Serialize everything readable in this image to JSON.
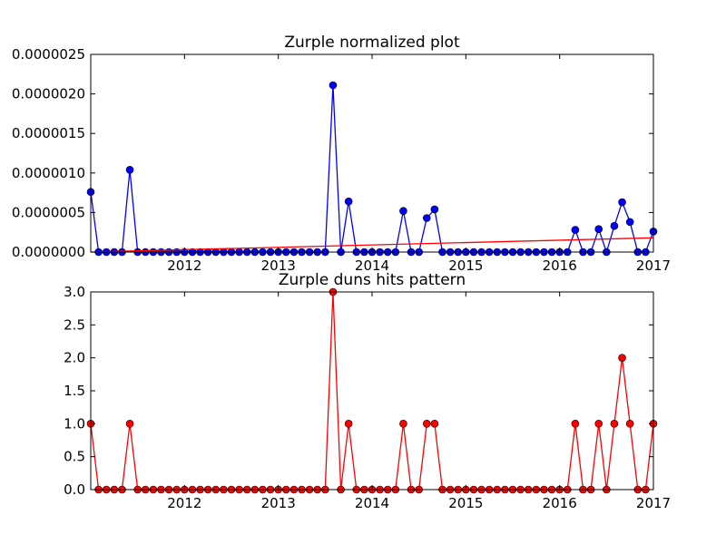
{
  "chart_data": [
    {
      "type": "line",
      "title": "Zurple normalized plot",
      "xlabel": "",
      "ylabel": "",
      "x_tick_labels": [
        "2012",
        "2013",
        "2014",
        "2015",
        "2016",
        "2017"
      ],
      "y_tick_labels": [
        "0.0000000",
        "0.0000005",
        "0.0000010",
        "0.0000015",
        "0.0000020",
        "0.0000025"
      ],
      "xlim": [
        "2011-01",
        "2017-01"
      ],
      "ylim": [
        0,
        2.5e-06
      ],
      "grid": false,
      "series": [
        {
          "color": "#0000ff",
          "marker": "circle",
          "x": [
            "2011-01",
            "2011-02",
            "2011-03",
            "2011-04",
            "2011-05",
            "2011-06",
            "2011-07",
            "2011-08",
            "2011-09",
            "2011-10",
            "2011-11",
            "2011-12",
            "2012-01",
            "2012-02",
            "2012-03",
            "2012-04",
            "2012-05",
            "2012-06",
            "2012-07",
            "2012-08",
            "2012-09",
            "2012-10",
            "2012-11",
            "2012-12",
            "2013-01",
            "2013-02",
            "2013-03",
            "2013-04",
            "2013-05",
            "2013-06",
            "2013-07",
            "2013-08",
            "2013-09",
            "2013-10",
            "2013-11",
            "2013-12",
            "2014-01",
            "2014-02",
            "2014-03",
            "2014-04",
            "2014-05",
            "2014-06",
            "2014-07",
            "2014-08",
            "2014-09",
            "2014-10",
            "2014-11",
            "2014-12",
            "2015-01",
            "2015-02",
            "2015-03",
            "2015-04",
            "2015-05",
            "2015-06",
            "2015-07",
            "2015-08",
            "2015-09",
            "2015-10",
            "2015-11",
            "2015-12",
            "2016-01",
            "2016-02",
            "2016-03",
            "2016-04",
            "2016-05",
            "2016-06",
            "2016-07",
            "2016-08",
            "2016-09",
            "2016-10",
            "2016-11",
            "2016-12",
            "2017-01"
          ],
          "values": [
            7.6e-07,
            0,
            0,
            0,
            0,
            1.04e-06,
            0,
            0,
            0,
            0,
            0,
            0,
            0,
            0,
            0,
            0,
            0,
            0,
            0,
            0,
            0,
            0,
            0,
            0,
            0,
            0,
            0,
            0,
            0,
            0,
            0,
            2.11e-06,
            0,
            6.4e-07,
            0,
            0,
            0,
            0,
            0,
            0,
            5.2e-07,
            0,
            0,
            4.3e-07,
            5.4e-07,
            0,
            0,
            0,
            0,
            0,
            0,
            0,
            0,
            0,
            0,
            0,
            0,
            0,
            0,
            0,
            0,
            0,
            2.8e-07,
            0,
            0,
            2.9e-07,
            0,
            3.3e-07,
            6.3e-07,
            3.8e-07,
            0,
            0,
            2.6e-07
          ]
        },
        {
          "color": "#ff0000",
          "marker": "none",
          "x": [
            "2011-01",
            "2017-01"
          ],
          "values": [
            0,
            1.8e-07
          ]
        }
      ]
    },
    {
      "type": "line",
      "title": "Zurple duns hits pattern",
      "xlabel": "",
      "ylabel": "",
      "x_tick_labels": [
        "2012",
        "2013",
        "2014",
        "2015",
        "2016",
        "2017"
      ],
      "y_tick_labels": [
        "0.0",
        "0.5",
        "1.0",
        "1.5",
        "2.0",
        "2.5",
        "3.0"
      ],
      "xlim": [
        "2011-01",
        "2017-01"
      ],
      "ylim": [
        0,
        3
      ],
      "grid": false,
      "series": [
        {
          "color": "#ff0000",
          "marker": "circle",
          "x": [
            "2011-01",
            "2011-02",
            "2011-03",
            "2011-04",
            "2011-05",
            "2011-06",
            "2011-07",
            "2011-08",
            "2011-09",
            "2011-10",
            "2011-11",
            "2011-12",
            "2012-01",
            "2012-02",
            "2012-03",
            "2012-04",
            "2012-05",
            "2012-06",
            "2012-07",
            "2012-08",
            "2012-09",
            "2012-10",
            "2012-11",
            "2012-12",
            "2013-01",
            "2013-02",
            "2013-03",
            "2013-04",
            "2013-05",
            "2013-06",
            "2013-07",
            "2013-08",
            "2013-09",
            "2013-10",
            "2013-11",
            "2013-12",
            "2014-01",
            "2014-02",
            "2014-03",
            "2014-04",
            "2014-05",
            "2014-06",
            "2014-07",
            "2014-08",
            "2014-09",
            "2014-10",
            "2014-11",
            "2014-12",
            "2015-01",
            "2015-02",
            "2015-03",
            "2015-04",
            "2015-05",
            "2015-06",
            "2015-07",
            "2015-08",
            "2015-09",
            "2015-10",
            "2015-11",
            "2015-12",
            "2016-01",
            "2016-02",
            "2016-03",
            "2016-04",
            "2016-05",
            "2016-06",
            "2016-07",
            "2016-08",
            "2016-09",
            "2016-10",
            "2016-11",
            "2016-12",
            "2017-01"
          ],
          "values": [
            1,
            0,
            0,
            0,
            0,
            1,
            0,
            0,
            0,
            0,
            0,
            0,
            0,
            0,
            0,
            0,
            0,
            0,
            0,
            0,
            0,
            0,
            0,
            0,
            0,
            0,
            0,
            0,
            0,
            0,
            0,
            3,
            0,
            1,
            0,
            0,
            0,
            0,
            0,
            0,
            1,
            0,
            0,
            1,
            1,
            0,
            0,
            0,
            0,
            0,
            0,
            0,
            0,
            0,
            0,
            0,
            0,
            0,
            0,
            0,
            0,
            0,
            1,
            0,
            0,
            1,
            0,
            1,
            2,
            1,
            0,
            0,
            1
          ]
        }
      ]
    }
  ]
}
